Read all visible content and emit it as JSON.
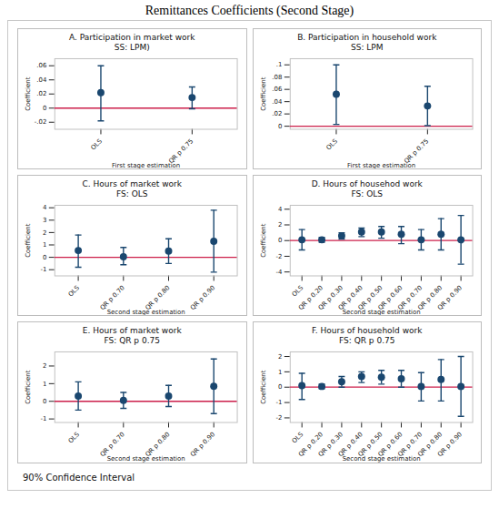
{
  "title": "Remittances Coefficients (Second Stage)",
  "caption": "90% Confidence Interval",
  "chart_data": [
    {
      "type": "errorbar",
      "title": "A. Participation in market work",
      "subtitle": "SS: LPM)",
      "x_label": "First stage estimation",
      "y_label": "Coefficient",
      "categories": [
        "OLS",
        "QR p 0.75"
      ],
      "values": [
        0.022,
        0.015
      ],
      "ci_lower": [
        -0.018,
        -0.001
      ],
      "ci_upper": [
        0.06,
        0.03
      ],
      "ylim": [
        -0.03,
        0.07
      ],
      "yticks": [
        {
          "value": -0.02,
          "label": "-.02"
        },
        0,
        {
          "value": 0.02,
          "label": ".02"
        },
        {
          "value": 0.04,
          "label": ".04"
        },
        {
          "value": 0.06,
          "label": ".06"
        }
      ],
      "color": "#1a476f",
      "reference_line": {
        "value": 0,
        "color": "#cc1f4a"
      }
    },
    {
      "type": "errorbar",
      "title": "B. Participation in household work",
      "subtitle": "SS: LPM",
      "x_label": "First stage estimation",
      "y_label": "Coefficient",
      "categories": [
        "OLS",
        "QR p 0.75"
      ],
      "values": [
        0.052,
        0.033
      ],
      "ci_lower": [
        0.003,
        0.001
      ],
      "ci_upper": [
        0.1,
        0.065
      ],
      "ylim": [
        -0.005,
        0.11
      ],
      "yticks": [
        0,
        {
          "value": 0.02,
          "label": ".02"
        },
        {
          "value": 0.04,
          "label": ".04"
        },
        {
          "value": 0.06,
          "label": ".06"
        },
        {
          "value": 0.08,
          "label": ".08"
        },
        {
          "value": 0.1,
          "label": ".1"
        }
      ],
      "color": "#1a476f",
      "reference_line": {
        "value": 0,
        "color": "#cc1f4a"
      }
    },
    {
      "type": "errorbar",
      "title": "C. Hours of market work",
      "subtitle": "FS: OLS",
      "x_label": "Second stage estimation",
      "y_label": "Coefficient",
      "categories": [
        "OLS",
        "QR p 0.70",
        "QR p 0.80",
        "QR p 0.90"
      ],
      "values": [
        0.55,
        0.05,
        0.5,
        1.3
      ],
      "ci_lower": [
        -0.8,
        -0.6,
        -0.5,
        -1.2
      ],
      "ci_upper": [
        1.8,
        0.8,
        1.5,
        3.8
      ],
      "ylim": [
        -1.5,
        4.2
      ],
      "yticks": [
        -1,
        0,
        1,
        2,
        3,
        4
      ],
      "color": "#1a476f",
      "reference_line": {
        "value": 0,
        "color": "#cc1f4a"
      }
    },
    {
      "type": "errorbar",
      "title": "D. Hours of househod work",
      "subtitle": "FS: OLS",
      "x_label": "Second stage estimation",
      "y_label": "Coefficient",
      "categories": [
        "OLS",
        "QR p 0.20",
        "QR p 0.30",
        "QR p 0.40",
        "QR p 0.50",
        "QR p 0.60",
        "QR p 0.70",
        "QR p 0.80",
        "QR p 0.90"
      ],
      "values": [
        0.1,
        0.1,
        0.6,
        1.1,
        1.1,
        0.8,
        0.1,
        0.8,
        0.1
      ],
      "ci_lower": [
        -1.2,
        -0.2,
        0.2,
        0.5,
        0.3,
        -0.4,
        -1.2,
        -1.2,
        -3.0
      ],
      "ci_upper": [
        1.4,
        0.4,
        1.0,
        1.6,
        1.8,
        1.8,
        1.4,
        2.8,
        3.2
      ],
      "ylim": [
        -4.5,
        4.5
      ],
      "yticks": [
        -4,
        -2,
        0,
        2,
        4
      ],
      "color": "#1a476f",
      "reference_line": {
        "value": 0,
        "color": "#cc1f4a"
      }
    },
    {
      "type": "errorbar",
      "title": "E. Hours of market work",
      "subtitle": "FS: QR p 0.75",
      "x_label": "Second stage estimation",
      "y_label": "Coefficient",
      "categories": [
        "OLS",
        "QR p 0.70",
        "QR p 0.80",
        "QR p 0.90"
      ],
      "values": [
        0.3,
        0.05,
        0.3,
        0.85
      ],
      "ci_lower": [
        -0.5,
        -0.4,
        -0.3,
        -0.7
      ],
      "ci_upper": [
        1.1,
        0.5,
        0.9,
        2.4
      ],
      "ylim": [
        -1.2,
        2.8
      ],
      "yticks": [
        -1,
        0,
        1,
        2
      ],
      "color": "#1a476f",
      "reference_line": {
        "value": 0,
        "color": "#cc1f4a"
      }
    },
    {
      "type": "errorbar",
      "title": "F. Hours of household work",
      "subtitle": "FS: QR p 0.75",
      "x_label": "Second stage estimation",
      "y_label": "Coefficient",
      "categories": [
        "OLS",
        "QR p 0.20",
        "QR p 0.30",
        "QR p 0.40",
        "QR p 0.50",
        "QR p 0.60",
        "QR p 0.70",
        "QR p 0.80",
        "QR p 0.90"
      ],
      "values": [
        0.1,
        0.05,
        0.35,
        0.7,
        0.65,
        0.55,
        0.05,
        0.5,
        0.05
      ],
      "ci_lower": [
        -0.8,
        -0.1,
        0.0,
        0.3,
        0.2,
        0.0,
        -0.9,
        -0.9,
        -1.9
      ],
      "ci_upper": [
        0.9,
        0.2,
        0.7,
        1.0,
        1.1,
        1.1,
        0.95,
        1.8,
        2.0
      ],
      "ylim": [
        -2.3,
        2.3
      ],
      "yticks": [
        -2,
        -1,
        0,
        1,
        2
      ],
      "color": "#1a476f",
      "reference_line": {
        "value": 0,
        "color": "#cc1f4a"
      }
    }
  ]
}
